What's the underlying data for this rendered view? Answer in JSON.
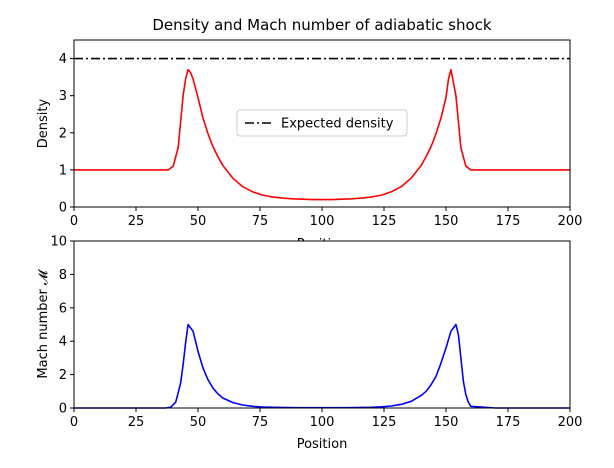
{
  "chart_data": [
    {
      "type": "line",
      "title": "Density and Mach number of adiabatic shock",
      "xlabel": "Position",
      "ylabel": "Density",
      "xlim": [
        0,
        200
      ],
      "ylim": [
        0,
        4.5
      ],
      "xticks": [
        "0",
        "25",
        "50",
        "75",
        "100",
        "125",
        "150",
        "175",
        "200"
      ],
      "yticks": [
        "0",
        "1",
        "2",
        "3",
        "4"
      ],
      "grid": false,
      "legend": {
        "placement": "center-right",
        "entries": [
          "Expected density"
        ]
      },
      "series": [
        {
          "style": "solid",
          "color": "#ff0000",
          "x": [
            0,
            10,
            20,
            30,
            38,
            40,
            42,
            43,
            44,
            45,
            46,
            47,
            48,
            50,
            52,
            54,
            56,
            58,
            60,
            64,
            68,
            72,
            76,
            80,
            84,
            88,
            92,
            96,
            100,
            104,
            108,
            112,
            116,
            120,
            124,
            128,
            132,
            136,
            140,
            142,
            144,
            146,
            148,
            150,
            151,
            152,
            154,
            156,
            158,
            160,
            170,
            180,
            190,
            200
          ],
          "values": [
            1,
            1,
            1,
            1,
            1,
            1.1,
            1.6,
            2.3,
            3.0,
            3.45,
            3.7,
            3.62,
            3.45,
            2.95,
            2.4,
            1.98,
            1.63,
            1.36,
            1.12,
            0.78,
            0.55,
            0.41,
            0.32,
            0.27,
            0.24,
            0.22,
            0.21,
            0.2,
            0.2,
            0.2,
            0.21,
            0.22,
            0.24,
            0.27,
            0.32,
            0.41,
            0.55,
            0.78,
            1.12,
            1.36,
            1.63,
            1.98,
            2.4,
            2.95,
            3.45,
            3.7,
            3.0,
            1.6,
            1.1,
            1,
            1,
            1,
            1,
            1
          ]
        },
        {
          "name": "Expected density",
          "style": "dashdot",
          "color": "#000000",
          "x": [
            0,
            200
          ],
          "values": [
            4,
            4
          ]
        }
      ]
    },
    {
      "type": "line",
      "title": "",
      "xlabel": "Position",
      "ylabel": "Mach number 𝓜",
      "xlim": [
        0,
        200
      ],
      "ylim": [
        0,
        10
      ],
      "xticks": [
        "0",
        "25",
        "50",
        "75",
        "100",
        "125",
        "150",
        "175",
        "200"
      ],
      "yticks": [
        "0",
        "2",
        "4",
        "6",
        "8",
        "10"
      ],
      "grid": false,
      "series": [
        {
          "style": "solid",
          "color": "#0000ff",
          "x": [
            0,
            10,
            20,
            30,
            37,
            39,
            41,
            42,
            43,
            44,
            45,
            46,
            48,
            50,
            52,
            54,
            56,
            58,
            60,
            64,
            68,
            72,
            76,
            80,
            90,
            100,
            110,
            120,
            124,
            128,
            132,
            136,
            140,
            142,
            144,
            146,
            148,
            150,
            152,
            154,
            155,
            156,
            157,
            158,
            159,
            160,
            170,
            180,
            190,
            200
          ],
          "values": [
            0,
            0,
            0,
            0,
            0,
            0.05,
            0.35,
            0.9,
            1.5,
            2.6,
            3.9,
            5.0,
            4.6,
            3.4,
            2.4,
            1.7,
            1.2,
            0.85,
            0.6,
            0.33,
            0.18,
            0.1,
            0.06,
            0.04,
            0.02,
            0.02,
            0.02,
            0.04,
            0.07,
            0.12,
            0.22,
            0.4,
            0.75,
            1.0,
            1.4,
            1.9,
            2.7,
            3.6,
            4.6,
            5.0,
            4.4,
            3.0,
            1.6,
            0.8,
            0.35,
            0.1,
            0,
            0,
            0,
            0
          ]
        }
      ]
    }
  ]
}
